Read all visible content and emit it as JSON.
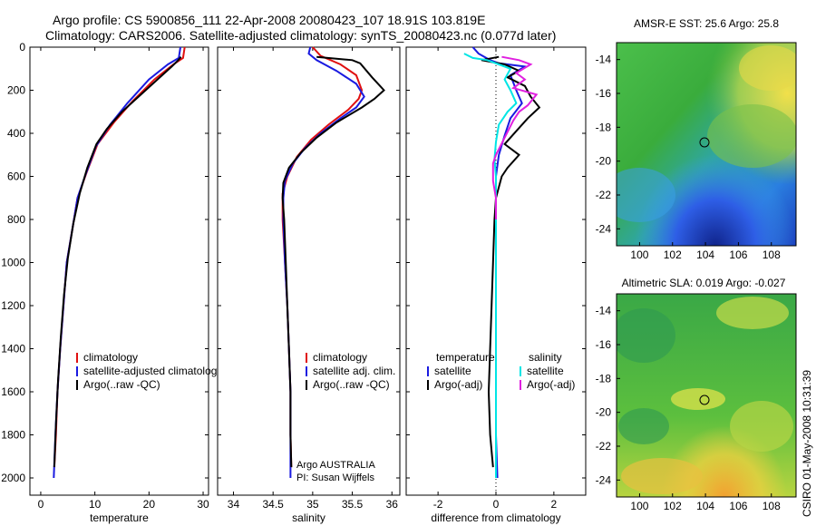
{
  "header": {
    "line1": "Argo profile: CS 5900856_111 22-Apr-2008 20080423_107 18.91S 103.819E",
    "line2": "Climatology: CARS2006. Satellite-adjusted climatology: synTS_20080423.nc (0.077d later)"
  },
  "side_stamp": "CSIRO 01-May-2008 10:31:39",
  "colors": {
    "climatology": "#e01010",
    "satellite_adj": "#1a1ae0",
    "argo": "#000000",
    "salinity_sat": "#00e5e5",
    "salinity_argo": "#e020e0"
  },
  "chart_data": [
    {
      "type": "line",
      "xlabel": "temperature",
      "ylabel": "",
      "xlim": [
        -2,
        31
      ],
      "ylim": [
        2080,
        0
      ],
      "xticks": [
        0,
        10,
        20,
        30
      ],
      "yticks": [
        0,
        200,
        400,
        600,
        800,
        1000,
        1200,
        1400,
        1600,
        1800,
        2000
      ],
      "legend": [
        "climatology",
        "satellite-adjusted climatology",
        "Argo(..raw -QC)"
      ],
      "legend_position": "lower-center",
      "series": [
        {
          "name": "climatology",
          "color": "#e01010",
          "points": [
            [
              26.6,
              0
            ],
            [
              26.3,
              50
            ],
            [
              24.5,
              80
            ],
            [
              21,
              150
            ],
            [
              17,
              250
            ],
            [
              13.5,
              350
            ],
            [
              10.5,
              450
            ],
            [
              8.5,
              580
            ],
            [
              6.8,
              700
            ],
            [
              5.8,
              850
            ],
            [
              4.8,
              1000
            ],
            [
              4.2,
              1200
            ],
            [
              3.6,
              1400
            ],
            [
              3.1,
              1600
            ],
            [
              2.8,
              1800
            ],
            [
              2.5,
              1950
            ]
          ]
        },
        {
          "name": "satellite-adjusted climatology",
          "color": "#1a1ae0",
          "points": [
            [
              25.8,
              0
            ],
            [
              25.5,
              50
            ],
            [
              23.5,
              80
            ],
            [
              20,
              150
            ],
            [
              16,
              260
            ],
            [
              12.8,
              360
            ],
            [
              10.2,
              460
            ],
            [
              8.3,
              590
            ],
            [
              6.8,
              700
            ],
            [
              5.8,
              850
            ],
            [
              4.8,
              1000
            ],
            [
              4.2,
              1200
            ],
            [
              3.6,
              1400
            ],
            [
              3.1,
              1600
            ],
            [
              2.7,
              1800
            ],
            [
              2.4,
              2000
            ]
          ]
        },
        {
          "name": "Argo(..raw -QC)",
          "color": "#000000",
          "points": [
            [
              25.9,
              45
            ],
            [
              25.4,
              60
            ],
            [
              24.2,
              90
            ],
            [
              22,
              140
            ],
            [
              18.5,
              220
            ],
            [
              15,
              300
            ],
            [
              12.2,
              380
            ],
            [
              10.3,
              450
            ],
            [
              8.6,
              560
            ],
            [
              7.2,
              680
            ],
            [
              6,
              820
            ],
            [
              5,
              980
            ],
            [
              4.3,
              1150
            ],
            [
              3.7,
              1350
            ],
            [
              3.2,
              1550
            ],
            [
              2.8,
              1750
            ],
            [
              2.5,
              1950
            ]
          ]
        }
      ]
    },
    {
      "type": "line",
      "xlabel": "salinity",
      "xlim": [
        33.8,
        36.1
      ],
      "ylim": [
        2080,
        0
      ],
      "xticks": [
        34,
        34.5,
        35,
        35.5,
        36
      ],
      "legend": [
        "climatology",
        "satellite adj. clim.",
        "Argo(..raw -QC)"
      ],
      "legend_position": "lower-center",
      "annotations": [
        "Argo AUSTRALIA",
        "PI: Susan Wijffels"
      ],
      "series": [
        {
          "name": "climatology",
          "color": "#e01010",
          "points": [
            [
              35.0,
              0
            ],
            [
              35.1,
              40
            ],
            [
              35.35,
              80
            ],
            [
              35.55,
              130
            ],
            [
              35.62,
              200
            ],
            [
              35.58,
              240
            ],
            [
              35.45,
              290
            ],
            [
              35.2,
              360
            ],
            [
              34.98,
              430
            ],
            [
              34.8,
              510
            ],
            [
              34.68,
              600
            ],
            [
              34.62,
              680
            ],
            [
              34.62,
              800
            ],
            [
              34.65,
              1000
            ],
            [
              34.68,
              1200
            ],
            [
              34.7,
              1400
            ],
            [
              34.72,
              1600
            ],
            [
              34.72,
              1800
            ],
            [
              34.73,
              1950
            ]
          ]
        },
        {
          "name": "satellite adj. clim.",
          "color": "#1a1ae0",
          "points": [
            [
              34.97,
              0
            ],
            [
              34.95,
              30
            ],
            [
              35.05,
              60
            ],
            [
              35.3,
              110
            ],
            [
              35.55,
              170
            ],
            [
              35.65,
              230
            ],
            [
              35.55,
              280
            ],
            [
              35.35,
              330
            ],
            [
              35.1,
              400
            ],
            [
              34.9,
              470
            ],
            [
              34.75,
              540
            ],
            [
              34.65,
              620
            ],
            [
              34.63,
              700
            ],
            [
              34.63,
              800
            ],
            [
              34.65,
              1000
            ],
            [
              34.68,
              1200
            ],
            [
              34.7,
              1400
            ],
            [
              34.72,
              1600
            ],
            [
              34.72,
              1800
            ],
            [
              34.72,
              2000
            ]
          ]
        },
        {
          "name": "Argo(..raw -QC)",
          "color": "#000000",
          "points": [
            [
              35.05,
              45
            ],
            [
              35.5,
              60
            ],
            [
              35.6,
              75
            ],
            [
              35.75,
              140
            ],
            [
              35.85,
              180
            ],
            [
              35.9,
              200
            ],
            [
              35.78,
              240
            ],
            [
              35.62,
              280
            ],
            [
              35.3,
              350
            ],
            [
              35.05,
              420
            ],
            [
              34.85,
              490
            ],
            [
              34.7,
              560
            ],
            [
              34.63,
              630
            ],
            [
              34.62,
              700
            ],
            [
              34.64,
              800
            ],
            [
              34.66,
              1000
            ],
            [
              34.68,
              1200
            ],
            [
              34.7,
              1400
            ],
            [
              34.72,
              1600
            ],
            [
              34.72,
              1800
            ],
            [
              34.73,
              1950
            ]
          ]
        }
      ]
    },
    {
      "type": "line",
      "xlabel": "difference from climatology",
      "xlim": [
        -3.1,
        3.1
      ],
      "ylim": [
        2080,
        0
      ],
      "xticks": [
        -2,
        0,
        2
      ],
      "legend_left": [
        "temperature",
        "satellite",
        "Argo(-adj)"
      ],
      "legend_right": [
        "salinity",
        "satellite",
        "Argo(-adj)"
      ],
      "legend_position": "lower-center",
      "series": [
        {
          "name": "temperature satellite",
          "color": "#1a1ae0",
          "points": [
            [
              -0.8,
              0
            ],
            [
              -0.6,
              30
            ],
            [
              -0.2,
              60
            ],
            [
              0.1,
              75
            ],
            [
              1.0,
              90
            ],
            [
              0.5,
              130
            ],
            [
              0.7,
              200
            ],
            [
              0.9,
              260
            ],
            [
              0.5,
              330
            ],
            [
              0.3,
              410
            ],
            [
              0.1,
              500
            ],
            [
              0.0,
              600
            ],
            [
              0.0,
              800
            ],
            [
              0.0,
              1000
            ],
            [
              0.0,
              1400
            ],
            [
              0.0,
              1800
            ],
            [
              0.05,
              2000
            ]
          ]
        },
        {
          "name": "temperature Argo(-adj)",
          "color": "#000000",
          "points": [
            [
              0.1,
              45
            ],
            [
              -0.5,
              60
            ],
            [
              0.3,
              80
            ],
            [
              0.8,
              110
            ],
            [
              0.4,
              140
            ],
            [
              1.0,
              180
            ],
            [
              1.2,
              230
            ],
            [
              1.5,
              280
            ],
            [
              1.1,
              330
            ],
            [
              0.7,
              390
            ],
            [
              0.3,
              450
            ],
            [
              0.8,
              500
            ],
            [
              0.4,
              560
            ],
            [
              0.2,
              600
            ],
            [
              0.1,
              650
            ],
            [
              0.0,
              700
            ],
            [
              -0.05,
              800
            ],
            [
              -0.1,
              1000
            ],
            [
              -0.15,
              1200
            ],
            [
              -0.2,
              1400
            ],
            [
              -0.25,
              1600
            ],
            [
              -0.2,
              1800
            ],
            [
              -0.1,
              1950
            ]
          ]
        },
        {
          "name": "salinity satellite",
          "color": "#00e5e5",
          "points": [
            [
              -1.1,
              30
            ],
            [
              -0.8,
              50
            ],
            [
              -0.3,
              60
            ],
            [
              0.1,
              80
            ],
            [
              0.5,
              100
            ],
            [
              0.3,
              150
            ],
            [
              0.5,
              200
            ],
            [
              0.7,
              260
            ],
            [
              0.4,
              300
            ],
            [
              0.1,
              360
            ],
            [
              0.0,
              440
            ],
            [
              -0.05,
              520
            ],
            [
              0.0,
              600
            ],
            [
              0.0,
              800
            ],
            [
              0.0,
              1200
            ],
            [
              0.0,
              1600
            ],
            [
              0.0,
              2000
            ]
          ]
        },
        {
          "name": "salinity Argo(-adj)",
          "color": "#e020e0",
          "points": [
            [
              0.2,
              45
            ],
            [
              0.8,
              60
            ],
            [
              1.2,
              80
            ],
            [
              0.7,
              120
            ],
            [
              1.0,
              150
            ],
            [
              0.6,
              190
            ],
            [
              1.4,
              220
            ],
            [
              1.1,
              270
            ],
            [
              0.8,
              300
            ],
            [
              0.6,
              340
            ],
            [
              0.3,
              420
            ],
            [
              0.0,
              500
            ],
            [
              -0.1,
              540
            ],
            [
              -0.1,
              620
            ],
            [
              0.0,
              700
            ],
            [
              0.0,
              800
            ]
          ]
        }
      ]
    }
  ],
  "maps": [
    {
      "title": "AMSR-E SST: 25.6 Argo: 25.8",
      "xticks": [
        "100",
        "102",
        "104",
        "106",
        "108"
      ],
      "yticks": [
        "-14",
        "-16",
        "-18",
        "-20",
        "-22",
        "-24"
      ],
      "xlim": [
        98.6,
        109.5
      ],
      "ylim": [
        -25,
        -13
      ]
    },
    {
      "title": "Altimetric SLA: 0.019 Argo: -0.027",
      "xticks": [
        "100",
        "102",
        "104",
        "106",
        "108"
      ],
      "yticks": [
        "-14",
        "-16",
        "-18",
        "-20",
        "-22",
        "-24"
      ],
      "xlim": [
        98.6,
        109.5
      ],
      "ylim": [
        -25,
        -13
      ]
    }
  ]
}
